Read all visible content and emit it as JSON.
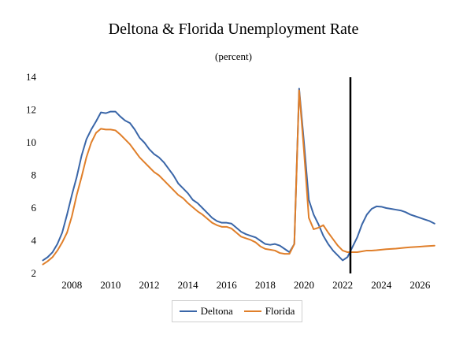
{
  "chart_data": {
    "type": "line",
    "title": "Deltona & Florida Unemployment Rate",
    "subtitle": "(percent)",
    "xlabel": "",
    "ylabel": "",
    "xlim": [
      2006.4,
      2026.8
    ],
    "ylim": [
      2,
      14
    ],
    "x_ticks": [
      2008,
      2010,
      2012,
      2014,
      2016,
      2018,
      2020,
      2022,
      2024,
      2026
    ],
    "y_ticks": [
      2,
      4,
      6,
      8,
      10,
      12,
      14
    ],
    "grid": false,
    "legend_position": "bottom-center",
    "forecast_marker_x": 2022.4,
    "colors": {
      "deltona": "#3a66a8",
      "florida": "#e07f2a",
      "marker": "#000000"
    },
    "series": [
      {
        "name": "Deltona",
        "points": [
          [
            2006.5,
            2.8
          ],
          [
            2006.75,
            3.0
          ],
          [
            2007.0,
            3.3
          ],
          [
            2007.25,
            3.8
          ],
          [
            2007.5,
            4.5
          ],
          [
            2007.75,
            5.6
          ],
          [
            2008.0,
            6.8
          ],
          [
            2008.25,
            7.9
          ],
          [
            2008.5,
            9.2
          ],
          [
            2008.75,
            10.2
          ],
          [
            2009.0,
            10.8
          ],
          [
            2009.25,
            11.3
          ],
          [
            2009.5,
            11.85
          ],
          [
            2009.75,
            11.8
          ],
          [
            2010.0,
            11.9
          ],
          [
            2010.25,
            11.9
          ],
          [
            2010.5,
            11.6
          ],
          [
            2010.75,
            11.35
          ],
          [
            2011.0,
            11.2
          ],
          [
            2011.25,
            10.8
          ],
          [
            2011.5,
            10.3
          ],
          [
            2011.75,
            10.0
          ],
          [
            2012.0,
            9.6
          ],
          [
            2012.25,
            9.3
          ],
          [
            2012.5,
            9.1
          ],
          [
            2012.75,
            8.8
          ],
          [
            2013.0,
            8.4
          ],
          [
            2013.25,
            8.0
          ],
          [
            2013.5,
            7.5
          ],
          [
            2013.75,
            7.2
          ],
          [
            2014.0,
            6.9
          ],
          [
            2014.25,
            6.5
          ],
          [
            2014.5,
            6.3
          ],
          [
            2014.75,
            6.0
          ],
          [
            2015.0,
            5.7
          ],
          [
            2015.25,
            5.4
          ],
          [
            2015.5,
            5.2
          ],
          [
            2015.75,
            5.1
          ],
          [
            2016.0,
            5.1
          ],
          [
            2016.25,
            5.05
          ],
          [
            2016.5,
            4.8
          ],
          [
            2016.75,
            4.55
          ],
          [
            2017.0,
            4.4
          ],
          [
            2017.25,
            4.3
          ],
          [
            2017.5,
            4.2
          ],
          [
            2017.75,
            4.0
          ],
          [
            2018.0,
            3.8
          ],
          [
            2018.25,
            3.75
          ],
          [
            2018.5,
            3.8
          ],
          [
            2018.75,
            3.7
          ],
          [
            2019.0,
            3.5
          ],
          [
            2019.25,
            3.3
          ],
          [
            2019.5,
            3.8
          ],
          [
            2019.75,
            13.3
          ],
          [
            2020.0,
            10.0
          ],
          [
            2020.25,
            6.5
          ],
          [
            2020.5,
            5.6
          ],
          [
            2020.75,
            5.0
          ],
          [
            2021.0,
            4.3
          ],
          [
            2021.25,
            3.8
          ],
          [
            2021.5,
            3.4
          ],
          [
            2021.75,
            3.1
          ],
          [
            2022.0,
            2.8
          ],
          [
            2022.25,
            3.0
          ],
          [
            2022.5,
            3.6
          ],
          [
            2022.75,
            4.2
          ],
          [
            2023.0,
            5.0
          ],
          [
            2023.25,
            5.6
          ],
          [
            2023.5,
            5.95
          ],
          [
            2023.75,
            6.1
          ],
          [
            2024.0,
            6.08
          ],
          [
            2024.25,
            6.0
          ],
          [
            2024.5,
            5.95
          ],
          [
            2024.75,
            5.9
          ],
          [
            2025.0,
            5.85
          ],
          [
            2025.25,
            5.75
          ],
          [
            2025.5,
            5.6
          ],
          [
            2025.75,
            5.5
          ],
          [
            2026.0,
            5.4
          ],
          [
            2026.25,
            5.3
          ],
          [
            2026.5,
            5.2
          ],
          [
            2026.75,
            5.05
          ]
        ]
      },
      {
        "name": "Florida",
        "points": [
          [
            2006.5,
            2.55
          ],
          [
            2006.75,
            2.75
          ],
          [
            2007.0,
            3.0
          ],
          [
            2007.25,
            3.4
          ],
          [
            2007.5,
            3.9
          ],
          [
            2007.75,
            4.5
          ],
          [
            2008.0,
            5.5
          ],
          [
            2008.25,
            6.8
          ],
          [
            2008.5,
            7.9
          ],
          [
            2008.75,
            9.1
          ],
          [
            2009.0,
            10.0
          ],
          [
            2009.25,
            10.6
          ],
          [
            2009.5,
            10.85
          ],
          [
            2009.75,
            10.8
          ],
          [
            2010.0,
            10.8
          ],
          [
            2010.25,
            10.75
          ],
          [
            2010.5,
            10.5
          ],
          [
            2010.75,
            10.2
          ],
          [
            2011.0,
            9.9
          ],
          [
            2011.25,
            9.5
          ],
          [
            2011.5,
            9.1
          ],
          [
            2011.75,
            8.8
          ],
          [
            2012.0,
            8.5
          ],
          [
            2012.25,
            8.2
          ],
          [
            2012.5,
            8.0
          ],
          [
            2012.75,
            7.7
          ],
          [
            2013.0,
            7.4
          ],
          [
            2013.25,
            7.1
          ],
          [
            2013.5,
            6.8
          ],
          [
            2013.75,
            6.6
          ],
          [
            2014.0,
            6.3
          ],
          [
            2014.25,
            6.05
          ],
          [
            2014.5,
            5.8
          ],
          [
            2014.75,
            5.6
          ],
          [
            2015.0,
            5.35
          ],
          [
            2015.25,
            5.1
          ],
          [
            2015.5,
            4.95
          ],
          [
            2015.75,
            4.85
          ],
          [
            2016.0,
            4.85
          ],
          [
            2016.25,
            4.75
          ],
          [
            2016.5,
            4.5
          ],
          [
            2016.75,
            4.25
          ],
          [
            2017.0,
            4.15
          ],
          [
            2017.25,
            4.05
          ],
          [
            2017.5,
            3.9
          ],
          [
            2017.75,
            3.65
          ],
          [
            2018.0,
            3.5
          ],
          [
            2018.25,
            3.45
          ],
          [
            2018.5,
            3.4
          ],
          [
            2018.75,
            3.25
          ],
          [
            2019.0,
            3.2
          ],
          [
            2019.25,
            3.2
          ],
          [
            2019.5,
            3.8
          ],
          [
            2019.75,
            13.2
          ],
          [
            2020.0,
            9.5
          ],
          [
            2020.25,
            5.4
          ],
          [
            2020.5,
            4.7
          ],
          [
            2020.75,
            4.8
          ],
          [
            2021.0,
            4.95
          ],
          [
            2021.25,
            4.5
          ],
          [
            2021.5,
            4.1
          ],
          [
            2021.75,
            3.7
          ],
          [
            2022.0,
            3.4
          ],
          [
            2022.25,
            3.3
          ],
          [
            2022.5,
            3.3
          ],
          [
            2022.75,
            3.3
          ],
          [
            2023.0,
            3.35
          ],
          [
            2023.25,
            3.4
          ],
          [
            2023.5,
            3.4
          ],
          [
            2023.75,
            3.42
          ],
          [
            2024.0,
            3.45
          ],
          [
            2024.25,
            3.48
          ],
          [
            2024.5,
            3.5
          ],
          [
            2024.75,
            3.52
          ],
          [
            2025.0,
            3.55
          ],
          [
            2025.25,
            3.58
          ],
          [
            2025.5,
            3.6
          ],
          [
            2025.75,
            3.62
          ],
          [
            2026.0,
            3.64
          ],
          [
            2026.25,
            3.66
          ],
          [
            2026.5,
            3.68
          ],
          [
            2026.75,
            3.7
          ]
        ]
      }
    ]
  }
}
